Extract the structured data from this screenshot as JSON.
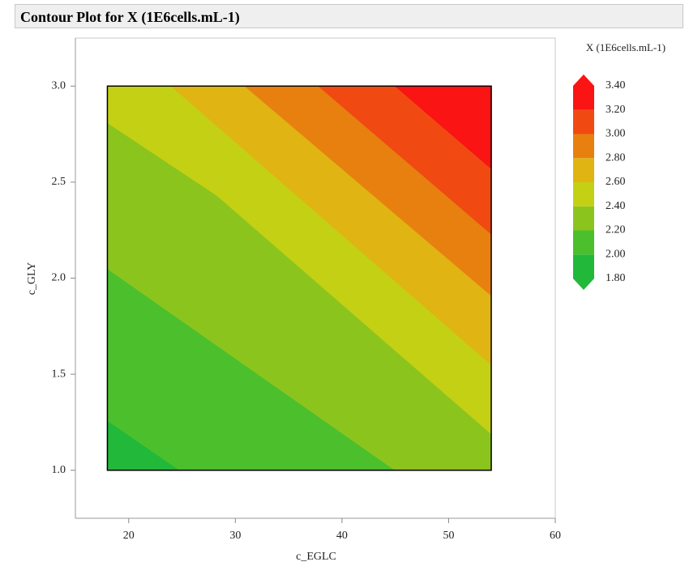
{
  "header": {
    "title": "Contour Plot for X (1E6cells.mL-1)"
  },
  "chart_data": {
    "type": "contour",
    "x_label": "c_EGLC",
    "y_label": "c_GLY",
    "xlim": [
      15,
      60
    ],
    "ylim": [
      0.75,
      3.25
    ],
    "xticks": [
      20,
      30,
      40,
      50,
      60
    ],
    "yticks": [
      {
        "value": 1,
        "label": "1.0"
      },
      {
        "value": 1.5,
        "label": "1.5"
      },
      {
        "value": 2,
        "label": "2.0"
      },
      {
        "value": 2.5,
        "label": "2.5"
      },
      {
        "value": 3,
        "label": "3.0"
      }
    ],
    "legend": {
      "title": "X (1E6cells.mL-1)",
      "levels": [
        {
          "value": 1.8,
          "label": "1.80"
        },
        {
          "value": 2,
          "label": "2.00"
        },
        {
          "value": 2.2,
          "label": "2.20"
        },
        {
          "value": 2.4,
          "label": "2.40"
        },
        {
          "value": 2.6,
          "label": "2.60"
        },
        {
          "value": 2.8,
          "label": "2.80"
        },
        {
          "value": 3,
          "label": "3.00"
        },
        {
          "value": 3.2,
          "label": "3.20"
        },
        {
          "value": 3.4,
          "label": "3.40"
        }
      ],
      "colors": [
        "#22b83a",
        "#4cc02c",
        "#8cc41e",
        "#c4d014",
        "#e0b412",
        "#e88010",
        "#f04a12",
        "#fa1414"
      ]
    },
    "contours": [
      {
        "level": 2.0,
        "x": [
          18,
          24.8
        ],
        "y": [
          1.26,
          1.0
        ]
      },
      {
        "level": 2.2,
        "x": [
          18,
          45.0
        ],
        "y": [
          2.05,
          1.0
        ]
      },
      {
        "level": 2.4,
        "x": [
          18,
          28.3,
          54
        ],
        "y": [
          2.81,
          2.43,
          1.19
        ]
      },
      {
        "level": 2.6,
        "x": [
          24.0,
          54
        ],
        "y": [
          3.0,
          1.55
        ]
      },
      {
        "level": 2.8,
        "x": [
          30.9,
          54
        ],
        "y": [
          3.0,
          1.91
        ]
      },
      {
        "level": 3.0,
        "x": [
          37.8,
          54
        ],
        "y": [
          3.0,
          2.23
        ]
      },
      {
        "level": 3.2,
        "x": [
          45.0,
          54
        ],
        "y": [
          3.0,
          2.57
        ]
      }
    ]
  }
}
